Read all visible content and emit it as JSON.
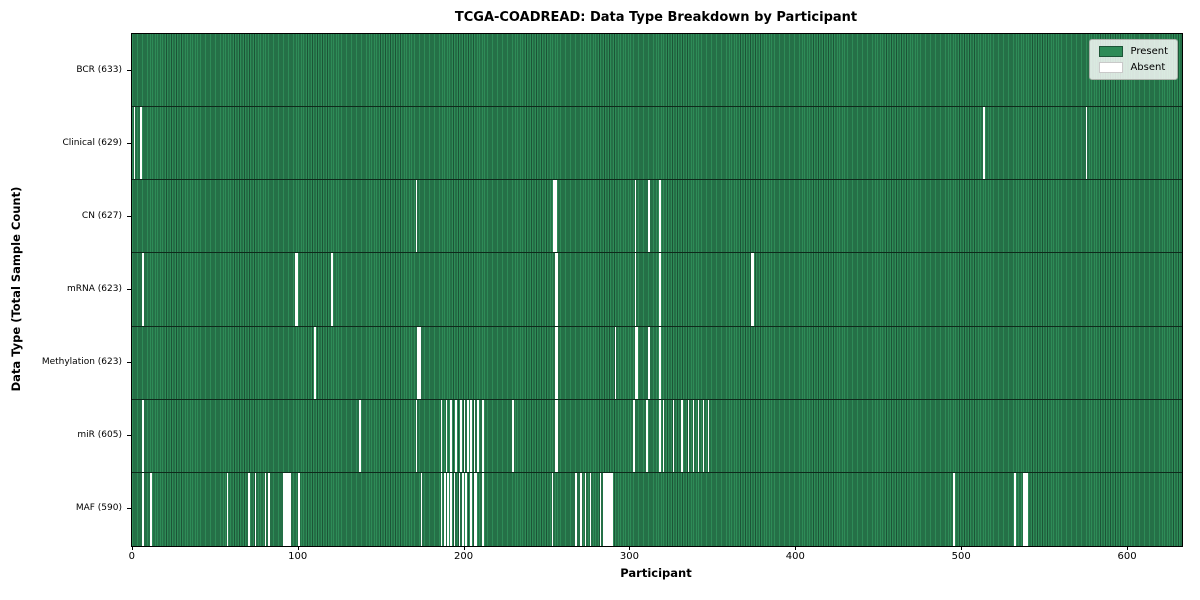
{
  "colors": {
    "present": "#2e8b57",
    "present_edge": "#1c5537",
    "absent": "#ffffff",
    "row_separator": "#0e2a1b",
    "legend_border": "#aab2aa"
  },
  "chart_data": {
    "type": "heatmap",
    "title": "TCGA-COADREAD: Data Type Breakdown by Participant",
    "xlabel": "Participant",
    "ylabel": "Data Type (Total Sample Count)",
    "xlim": [
      0,
      633
    ],
    "x_ticks": [
      0,
      100,
      200,
      300,
      400,
      500,
      600
    ],
    "n_participants": 633,
    "grid": false,
    "legend": {
      "position": "upper right",
      "entries": [
        {
          "label": "Present",
          "color": "#2e8b57"
        },
        {
          "label": "Absent",
          "color": "#ffffff"
        }
      ]
    },
    "rows": [
      {
        "name": "BCR",
        "label": "BCR (633)",
        "present_count": 633,
        "absent_participants": []
      },
      {
        "name": "Clinical",
        "label": "Clinical (629)",
        "present_count": 629,
        "absent_participants": [
          1,
          5,
          513,
          575
        ]
      },
      {
        "name": "CN",
        "label": "CN (627)",
        "present_count": 627,
        "absent_participants": [
          171,
          254,
          255,
          303,
          311,
          318
        ]
      },
      {
        "name": "mRNA",
        "label": "mRNA (623)",
        "present_count": 623,
        "absent_participants": [
          6,
          98,
          99,
          120,
          255,
          256,
          303,
          318,
          373,
          374
        ]
      },
      {
        "name": "Methylation",
        "label": "Methylation (623)",
        "present_count": 623,
        "absent_participants": [
          110,
          172,
          173,
          255,
          256,
          291,
          303,
          304,
          311,
          318
        ]
      },
      {
        "name": "miR",
        "label": "miR (605)",
        "present_count": 605,
        "absent_participants": [
          6,
          137,
          171,
          186,
          189,
          192,
          195,
          198,
          200,
          202,
          204,
          206,
          208,
          211,
          229,
          255,
          256,
          302,
          310,
          318,
          320,
          326,
          331,
          335,
          338,
          341,
          344,
          347
        ]
      },
      {
        "name": "MAF",
        "label": "MAF (590)",
        "present_count": 590,
        "absent_participants": [
          6,
          11,
          57,
          70,
          74,
          80,
          82,
          91,
          92,
          93,
          94,
          95,
          100,
          174,
          186,
          188,
          190,
          192,
          194,
          197,
          199,
          201,
          204,
          206,
          207,
          211,
          253,
          267,
          270,
          273,
          276,
          282,
          284,
          285,
          286,
          287,
          288,
          289,
          495,
          532,
          537,
          538,
          539
        ]
      }
    ]
  }
}
